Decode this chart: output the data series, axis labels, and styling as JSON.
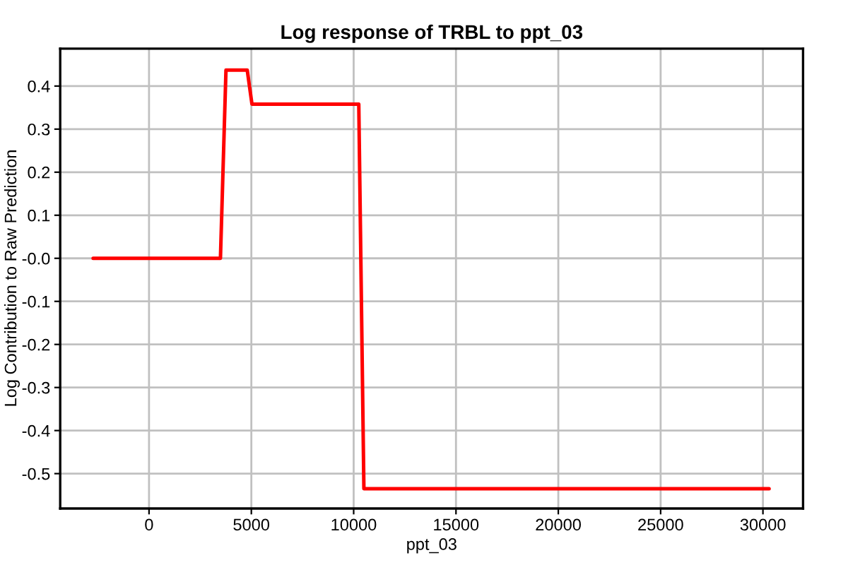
{
  "chart_data": {
    "type": "line",
    "title": "Log response of TRBL to ppt_03",
    "xlabel": "ppt_03",
    "ylabel": "Log Contribution to Raw Prediction",
    "x": [
      -2730,
      3490,
      3760,
      4800,
      5030,
      10250,
      10500,
      30300
    ],
    "series": [
      {
        "color": "#ff0000",
        "values": [
          0,
          0,
          0.437,
          0.437,
          0.358,
          0.358,
          -0.535,
          -0.535
        ]
      }
    ],
    "xlim": [
      -4340,
      31960
    ],
    "xticks": [
      0,
      5000,
      10000,
      15000,
      20000,
      25000,
      30000
    ],
    "ylim": [
      -0.581,
      0.487
    ],
    "yticks": [
      -0.5,
      -0.4,
      -0.3,
      -0.2,
      -0.1,
      {
        "value": 0,
        "label": "-0.0"
      },
      0.1,
      0.2,
      0.3,
      0.4
    ],
    "grid": true,
    "marker": "none",
    "line_style": "solid"
  }
}
